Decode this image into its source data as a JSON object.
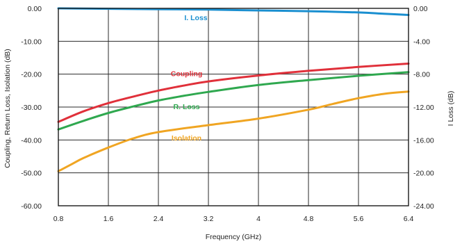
{
  "chart_data": {
    "type": "line",
    "title": "",
    "xlabel": "Frequency (GHz)",
    "ylabel_left": "Coupling, Return Loss, Isolation (dB)",
    "ylabel_right": "I Loss (dB)",
    "x_ticks": [
      "0.8",
      "1.6",
      "2.4",
      "3.2",
      "4",
      "4.8",
      "5.6",
      "6.4"
    ],
    "y_left_ticks": [
      "0.00",
      "-10.00",
      "-20.00",
      "-30.00",
      "-40.00",
      "-50.00",
      "-60.00"
    ],
    "y_right_ticks": [
      "0.00",
      "-4.00",
      "-8.00",
      "-12.00",
      "-16.00",
      "-20.00",
      "-24.00"
    ],
    "xlim": [
      0.8,
      6.4
    ],
    "ylim_left": [
      -60,
      0
    ],
    "ylim_right": [
      -24,
      0
    ],
    "grid": true,
    "series": [
      {
        "name": "I. Loss",
        "axis": "right",
        "color": "#1a8fd0",
        "x": [
          0.8,
          1.6,
          2.4,
          3.2,
          4.0,
          4.8,
          5.6,
          6.0,
          6.4
        ],
        "y": [
          0.0,
          -0.05,
          -0.1,
          -0.15,
          -0.25,
          -0.35,
          -0.5,
          -0.65,
          -0.8
        ]
      },
      {
        "name": "Coupling",
        "axis": "left",
        "color": "#e0303a",
        "x": [
          0.8,
          1.2,
          1.6,
          2.0,
          2.4,
          2.8,
          3.2,
          4.0,
          4.8,
          5.6,
          6.4
        ],
        "y": [
          -34.5,
          -31.3,
          -28.8,
          -26.8,
          -25.0,
          -23.5,
          -22.2,
          -20.4,
          -19.0,
          -17.8,
          -16.8
        ]
      },
      {
        "name": "R. Loss",
        "axis": "left",
        "color": "#2fa84f",
        "x": [
          0.8,
          1.2,
          1.6,
          2.0,
          2.4,
          2.8,
          3.2,
          4.0,
          4.8,
          5.6,
          6.4
        ],
        "y": [
          -36.8,
          -34.2,
          -31.8,
          -29.8,
          -28.0,
          -26.6,
          -25.4,
          -23.3,
          -21.8,
          -20.5,
          -19.4
        ]
      },
      {
        "name": "Isolation",
        "axis": "left",
        "color": "#f0a522",
        "x": [
          0.8,
          1.0,
          1.2,
          1.6,
          2.0,
          2.4,
          3.2,
          4.0,
          4.8,
          5.2,
          5.6,
          6.0,
          6.4
        ],
        "y": [
          -49.5,
          -47.5,
          -45.5,
          -42.3,
          -39.5,
          -37.6,
          -35.5,
          -33.5,
          -30.8,
          -29.0,
          -27.3,
          -26.0,
          -25.3
        ]
      }
    ],
    "annotations": [
      {
        "text": "I. Loss",
        "color": "#1a8fd0",
        "x": 3.0,
        "y_left": -3.6
      },
      {
        "text": "Coupling",
        "color": "#e0303a",
        "x": 2.85,
        "y_left": -20.6
      },
      {
        "text": "R. Loss",
        "color": "#2fa84f",
        "x": 2.85,
        "y_left": -30.6
      },
      {
        "text": "Isolation",
        "color": "#f0a522",
        "x": 2.85,
        "y_left": -40.1
      }
    ]
  }
}
